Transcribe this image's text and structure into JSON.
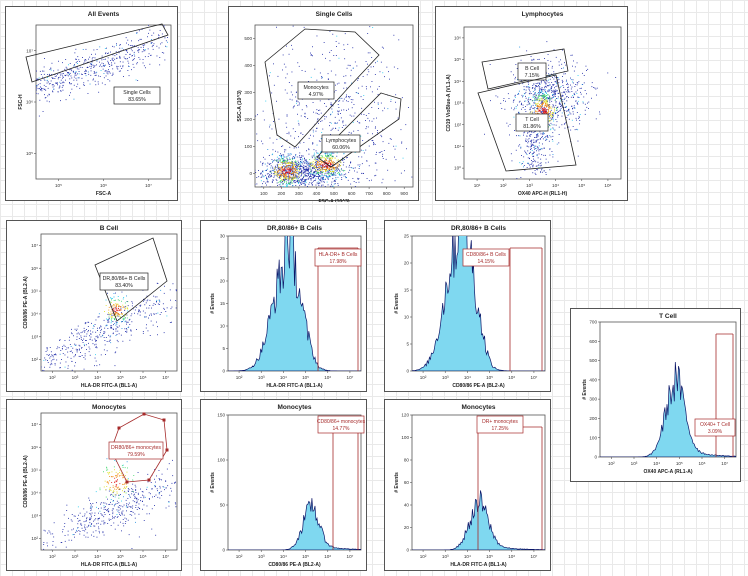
{
  "colors": {
    "accent": "#22C8EE",
    "gate": "#222222",
    "gate_red": "#A52A2A",
    "dot": "#1F2BA8",
    "hist_fill": "#7FD8F0",
    "hist_line": "#0B1668"
  },
  "chart_data": [
    {
      "id": "p1",
      "type": "scatter",
      "title": "All Events",
      "xlabel": "FSC-A",
      "ylabel": "FSC-H",
      "xscale": "log",
      "yscale": "log",
      "xticks": [
        "10^5",
        "10^6",
        "10^7"
      ],
      "yticks": [
        "10^7",
        "10^6",
        "10^5"
      ],
      "gates": [
        {
          "label": "Single Cells",
          "value": "83.65%"
        }
      ]
    },
    {
      "id": "p2",
      "type": "scatter",
      "title": "Single Cells",
      "xlabel": "FSC-A (10^3)",
      "ylabel": "SSC-A (10^3)",
      "xticks": [
        "100",
        "200",
        "300",
        "400",
        "500",
        "600",
        "700",
        "800",
        "900"
      ],
      "yticks": [
        "500",
        "400",
        "300",
        "200",
        "100",
        "0"
      ],
      "gates": [
        {
          "label": "Monocytes",
          "value": "4.97%"
        },
        {
          "label": "Lymphocytes",
          "value": "60.06%"
        }
      ]
    },
    {
      "id": "p3",
      "type": "scatter",
      "title": "Lymphocytes",
      "xlabel": "OX40 APC-H (RL1-H)",
      "ylabel": "CD19 VioBlue-A (VL1-A)",
      "xscale": "log",
      "yscale": "log",
      "xticks": [
        "10^1",
        "10^2",
        "10^3",
        "10^4",
        "10^5",
        "10^6"
      ],
      "yticks": [
        "10^6",
        "10^5",
        "10^4",
        "10^3",
        "10^2",
        "10^1",
        "10^0"
      ],
      "gates": [
        {
          "label": "B Cell",
          "value": "7.15%"
        },
        {
          "label": "T Cell",
          "value": "81.86%"
        }
      ]
    },
    {
      "id": "p4",
      "type": "scatter",
      "title": "B Cell",
      "xlabel": "HLA-DR FITC-A (BL1-A)",
      "ylabel": "CD80/86 PE-A (BL2-A)",
      "xscale": "log",
      "yscale": "log",
      "xticks": [
        "10^2",
        "10^3",
        "10^4",
        "10^5",
        "10^6",
        "10^7"
      ],
      "yticks": [
        "10^7",
        "10^6",
        "10^5",
        "10^4",
        "10^3",
        "10^2"
      ],
      "gates": [
        {
          "label": "DR,80/86+ B Cells",
          "value": "83.40%"
        }
      ]
    },
    {
      "id": "p5",
      "type": "histogram",
      "title": "DR,80/86+ B Cells",
      "xlabel": "HLA-DR FITC-A (BL1-A)",
      "ylabel": "# Events",
      "ylim": [
        0,
        30
      ],
      "xticks": [
        "10^2",
        "10^3",
        "10^4",
        "10^5",
        "10^6",
        "10^7"
      ],
      "yticks": [
        "30",
        "25",
        "20",
        "15",
        "10",
        "5",
        "0"
      ],
      "gates": [
        {
          "label": "HLA-DR+ B Cells",
          "value": "17.98%"
        }
      ]
    },
    {
      "id": "p6",
      "type": "histogram",
      "title": "DR,80/86+ B Cells",
      "xlabel": "CD80/86 PE-A (BL2-A)",
      "ylabel": "# Events",
      "ylim": [
        0,
        27
      ],
      "xticks": [
        "10^2",
        "10^3",
        "10^4",
        "10^5",
        "10^6",
        "10^7"
      ],
      "yticks": [
        "25",
        "20",
        "15",
        "10",
        "5",
        "0"
      ],
      "gates": [
        {
          "label": "CD80/86+ B Cells",
          "value": "14.15%"
        }
      ]
    },
    {
      "id": "p7",
      "type": "histogram",
      "title": "T Cell",
      "xlabel": "OX40 APC-A (RL1-A)",
      "ylabel": "# Events",
      "ylim": [
        0,
        700
      ],
      "xticks": [
        "10^2",
        "10^3",
        "10^4",
        "10^5",
        "10^6",
        "10^7"
      ],
      "yticks": [
        "700",
        "600",
        "500",
        "400",
        "300",
        "200",
        "100",
        "0"
      ],
      "gates": [
        {
          "label": "OX40+ T Cell",
          "value": "3.09%"
        }
      ]
    },
    {
      "id": "p8",
      "type": "scatter",
      "title": "Monocytes",
      "xlabel": "HLA-DR FITC-A (BL1-A)",
      "ylabel": "CD80/86 PE-A (BL2-A)",
      "xscale": "log",
      "yscale": "log",
      "xticks": [
        "10^2",
        "10^3",
        "10^4",
        "10^5",
        "10^6",
        "10^7"
      ],
      "yticks": [
        "10^7",
        "10^6",
        "10^5",
        "10^4",
        "10^3",
        "10^2"
      ],
      "gates": [
        {
          "label": "DR80/86+ monocytes",
          "value": "79.59%"
        }
      ]
    },
    {
      "id": "p9",
      "type": "histogram",
      "title": "Monocytes",
      "xlabel": "CD80/86 PE-A (BL2-A)",
      "ylabel": "# Events",
      "ylim": [
        0,
        180
      ],
      "xticks": [
        "10^2",
        "10^3",
        "10^4",
        "10^5",
        "10^6",
        "10^7"
      ],
      "yticks": [
        "150",
        "100",
        "50",
        "0"
      ],
      "gates": [
        {
          "label": "CD80/86+ monocytes",
          "value": "14.77%"
        }
      ]
    },
    {
      "id": "p10",
      "type": "histogram",
      "title": "Monocytes",
      "xlabel": "HLA-DR FITC-A (BL1-A)",
      "ylabel": "# Events",
      "ylim": [
        0,
        140
      ],
      "xticks": [
        "10^2",
        "10^3",
        "10^4",
        "10^5",
        "10^6",
        "10^7"
      ],
      "yticks": [
        "120",
        "100",
        "80",
        "60",
        "40",
        "20",
        "0"
      ],
      "gates": [
        {
          "label": "DR+ monocytes",
          "value": "17.25%"
        }
      ]
    }
  ]
}
